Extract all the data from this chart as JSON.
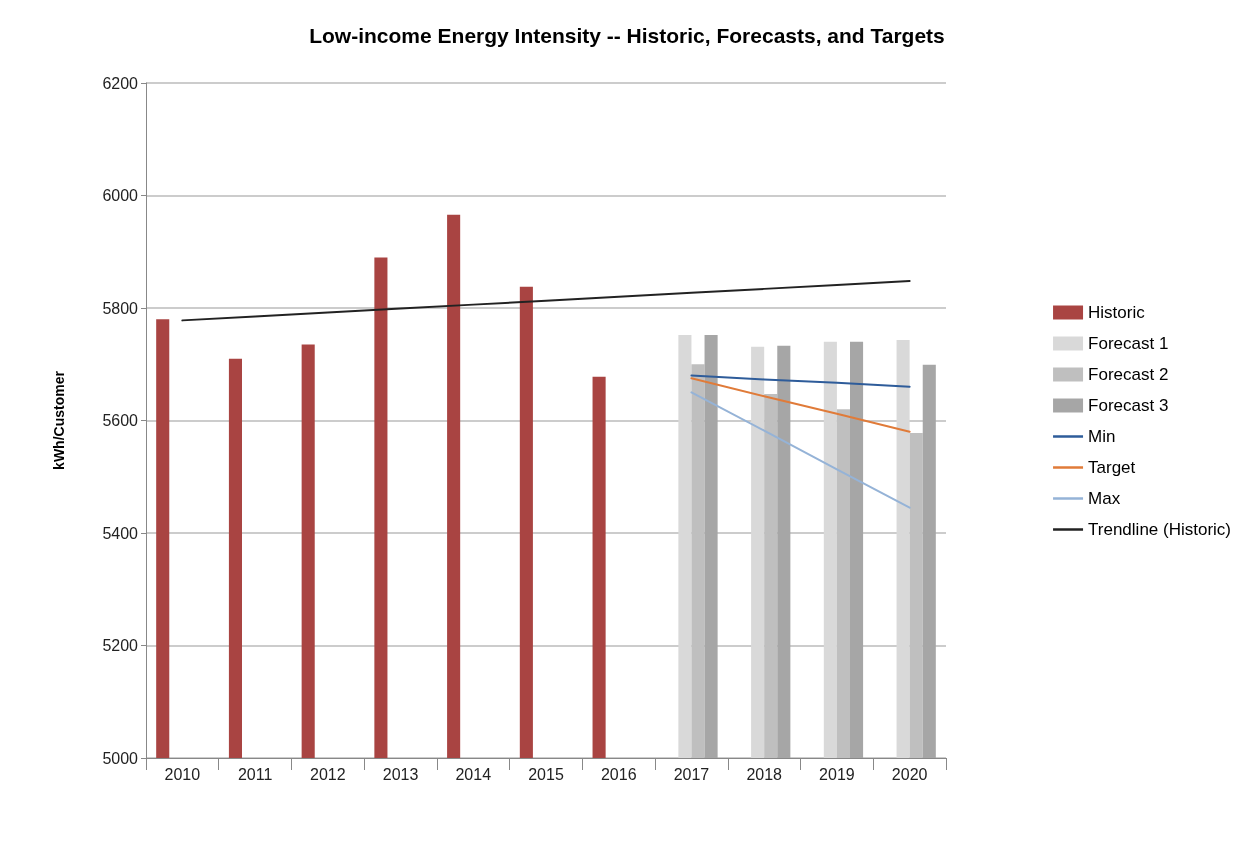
{
  "chart_data": {
    "type": "bar",
    "title": "Low-income Energy Intensity -- Historic, Forecasts, and Targets",
    "ylabel": "kWh/Customer",
    "categories": [
      "2010",
      "2011",
      "2012",
      "2013",
      "2014",
      "2015",
      "2016",
      "2017",
      "2018",
      "2019",
      "2020"
    ],
    "series": [
      {
        "name": "Historic",
        "color": "#a94442",
        "values": [
          5780,
          5710,
          5735,
          5890,
          5966,
          5838,
          5678,
          null,
          null,
          null,
          null
        ]
      },
      {
        "name": "Forecast 1",
        "color": "#d9d9d9",
        "values": [
          null,
          null,
          null,
          null,
          null,
          null,
          null,
          5752,
          5731,
          5740,
          5743
        ]
      },
      {
        "name": "Forecast 2",
        "color": "#bfbfbf",
        "values": [
          null,
          null,
          null,
          null,
          null,
          null,
          null,
          5700,
          5647,
          5620,
          5578
        ]
      },
      {
        "name": "Forecast 3",
        "color": "#a6a6a6",
        "values": [
          null,
          null,
          null,
          null,
          null,
          null,
          null,
          5752,
          5733,
          5740,
          5699
        ]
      },
      {
        "name": "Min",
        "type": "line",
        "color": "#2e5c9a",
        "values": [
          null,
          null,
          null,
          null,
          null,
          null,
          null,
          5680,
          5673,
          5667,
          5660
        ]
      },
      {
        "name": "Target",
        "type": "line",
        "color": "#e07b39",
        "values": [
          null,
          null,
          null,
          null,
          null,
          null,
          null,
          5675,
          5643,
          5612,
          5580
        ]
      },
      {
        "name": "Max",
        "type": "line",
        "color": "#95b3d7",
        "values": [
          null,
          null,
          null,
          null,
          null,
          null,
          null,
          5650,
          5582,
          5513,
          5445
        ]
      },
      {
        "name": "Trendline (Historic)",
        "type": "line",
        "color": "#222222",
        "values": [
          5778,
          5785,
          5792,
          5799,
          5806,
          5813,
          5820,
          5827,
          5834,
          5841,
          5848
        ]
      }
    ],
    "ylim": [
      5000,
      6200
    ],
    "yticks": [
      5000,
      5200,
      5400,
      5600,
      5800,
      6000,
      6200
    ],
    "grid": "y",
    "legend": "right",
    "marker": "none",
    "line_style": "solid"
  }
}
